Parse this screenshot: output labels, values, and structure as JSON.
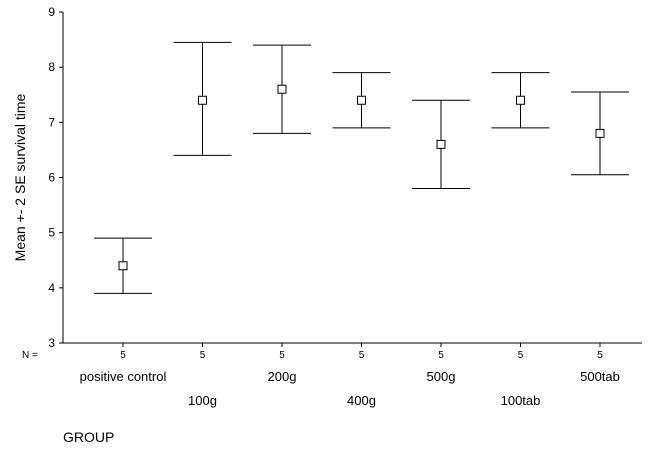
{
  "chart_data": {
    "type": "errorbar",
    "title": "",
    "xlabel": "GROUP",
    "ylabel": "Mean +- 2 SE survival time",
    "ylim": [
      3,
      9
    ],
    "yticks": [
      3,
      4,
      5,
      6,
      7,
      8,
      9
    ],
    "n_prefix": "N =",
    "categories": [
      "positive control",
      "100g",
      "200g",
      "400g",
      "500g",
      "100tab",
      "500tab"
    ],
    "n": [
      "5",
      "5",
      "5",
      "5",
      "5",
      "5",
      "5"
    ],
    "mean": [
      4.4,
      7.4,
      7.6,
      7.4,
      6.6,
      7.4,
      6.8
    ],
    "lower": [
      3.9,
      6.4,
      6.8,
      6.9,
      5.8,
      6.9,
      6.05
    ],
    "upper": [
      4.9,
      8.45,
      8.4,
      7.9,
      7.4,
      7.9,
      7.55
    ],
    "grid": false,
    "legend": "none"
  }
}
